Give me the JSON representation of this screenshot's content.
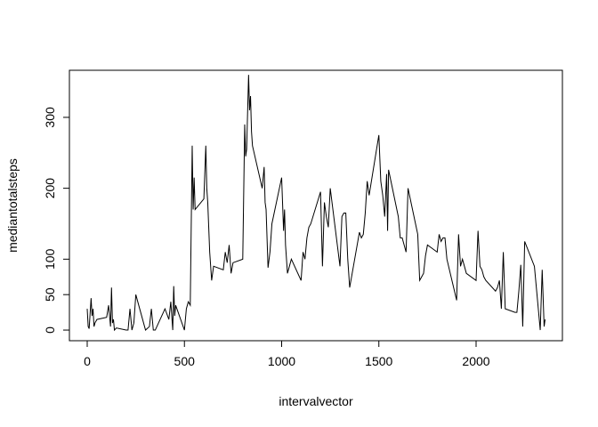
{
  "chart_data": {
    "type": "line",
    "x_label": "intervalvector",
    "y_label": "mediantotalsteps",
    "color": "#000000",
    "x": [
      0,
      5,
      10,
      20,
      25,
      30,
      35,
      40,
      50,
      100,
      110,
      120,
      125,
      130,
      135,
      140,
      150,
      200,
      210,
      220,
      230,
      240,
      250,
      300,
      320,
      330,
      340,
      350,
      400,
      420,
      430,
      440,
      445,
      450,
      455,
      500,
      510,
      520,
      530,
      540,
      545,
      550,
      555,
      600,
      610,
      615,
      620,
      630,
      640,
      650,
      700,
      710,
      720,
      730,
      740,
      750,
      800,
      810,
      815,
      820,
      830,
      835,
      840,
      845,
      850,
      900,
      910,
      915,
      920,
      930,
      940,
      945,
      950,
      1000,
      1010,
      1015,
      1020,
      1030,
      1040,
      1050,
      1100,
      1110,
      1120,
      1130,
      1140,
      1150,
      1200,
      1210,
      1220,
      1230,
      1240,
      1250,
      1300,
      1310,
      1320,
      1330,
      1340,
      1350,
      1400,
      1410,
      1420,
      1430,
      1440,
      1450,
      1500,
      1510,
      1520,
      1530,
      1540,
      1545,
      1550,
      1600,
      1610,
      1620,
      1630,
      1640,
      1650,
      1700,
      1710,
      1720,
      1730,
      1740,
      1750,
      1800,
      1810,
      1820,
      1830,
      1840,
      1850,
      1900,
      1910,
      1920,
      1930,
      1940,
      1950,
      2000,
      2010,
      2020,
      2030,
      2040,
      2050,
      2100,
      2110,
      2120,
      2130,
      2140,
      2150,
      2200,
      2210,
      2220,
      2230,
      2240,
      2250,
      2300,
      2310,
      2320,
      2330,
      2340,
      2350,
      2355
    ],
    "values": [
      30,
      5,
      2,
      45,
      20,
      30,
      5,
      10,
      15,
      18,
      35,
      5,
      60,
      10,
      15,
      0,
      3,
      0,
      0,
      30,
      0,
      10,
      50,
      0,
      5,
      30,
      0,
      0,
      30,
      15,
      40,
      0,
      62,
      20,
      35,
      0,
      30,
      40,
      35,
      260,
      170,
      215,
      170,
      185,
      260,
      200,
      180,
      110,
      70,
      90,
      85,
      110,
      95,
      120,
      80,
      95,
      100,
      290,
      245,
      255,
      360,
      310,
      330,
      280,
      260,
      200,
      230,
      180,
      170,
      88,
      110,
      130,
      150,
      215,
      140,
      170,
      120,
      80,
      90,
      100,
      70,
      110,
      100,
      130,
      145,
      150,
      195,
      90,
      180,
      160,
      145,
      200,
      90,
      160,
      165,
      165,
      100,
      60,
      138,
      130,
      135,
      165,
      210,
      190,
      275,
      210,
      190,
      160,
      220,
      140,
      226,
      160,
      130,
      130,
      120,
      110,
      200,
      135,
      70,
      75,
      80,
      105,
      120,
      110,
      135,
      125,
      130,
      130,
      100,
      42,
      135,
      90,
      100,
      90,
      80,
      70,
      140,
      90,
      85,
      75,
      70,
      55,
      60,
      70,
      30,
      110,
      30,
      25,
      25,
      55,
      92,
      5,
      125,
      90,
      60,
      30,
      0,
      85,
      5,
      15
    ],
    "xlim": [
      -91.5,
      2444
    ],
    "ylim": [
      -15,
      366.4
    ],
    "xticks": [
      0,
      500,
      1000,
      1500,
      2000
    ],
    "yticks": [
      0,
      50,
      100,
      200,
      300
    ]
  }
}
